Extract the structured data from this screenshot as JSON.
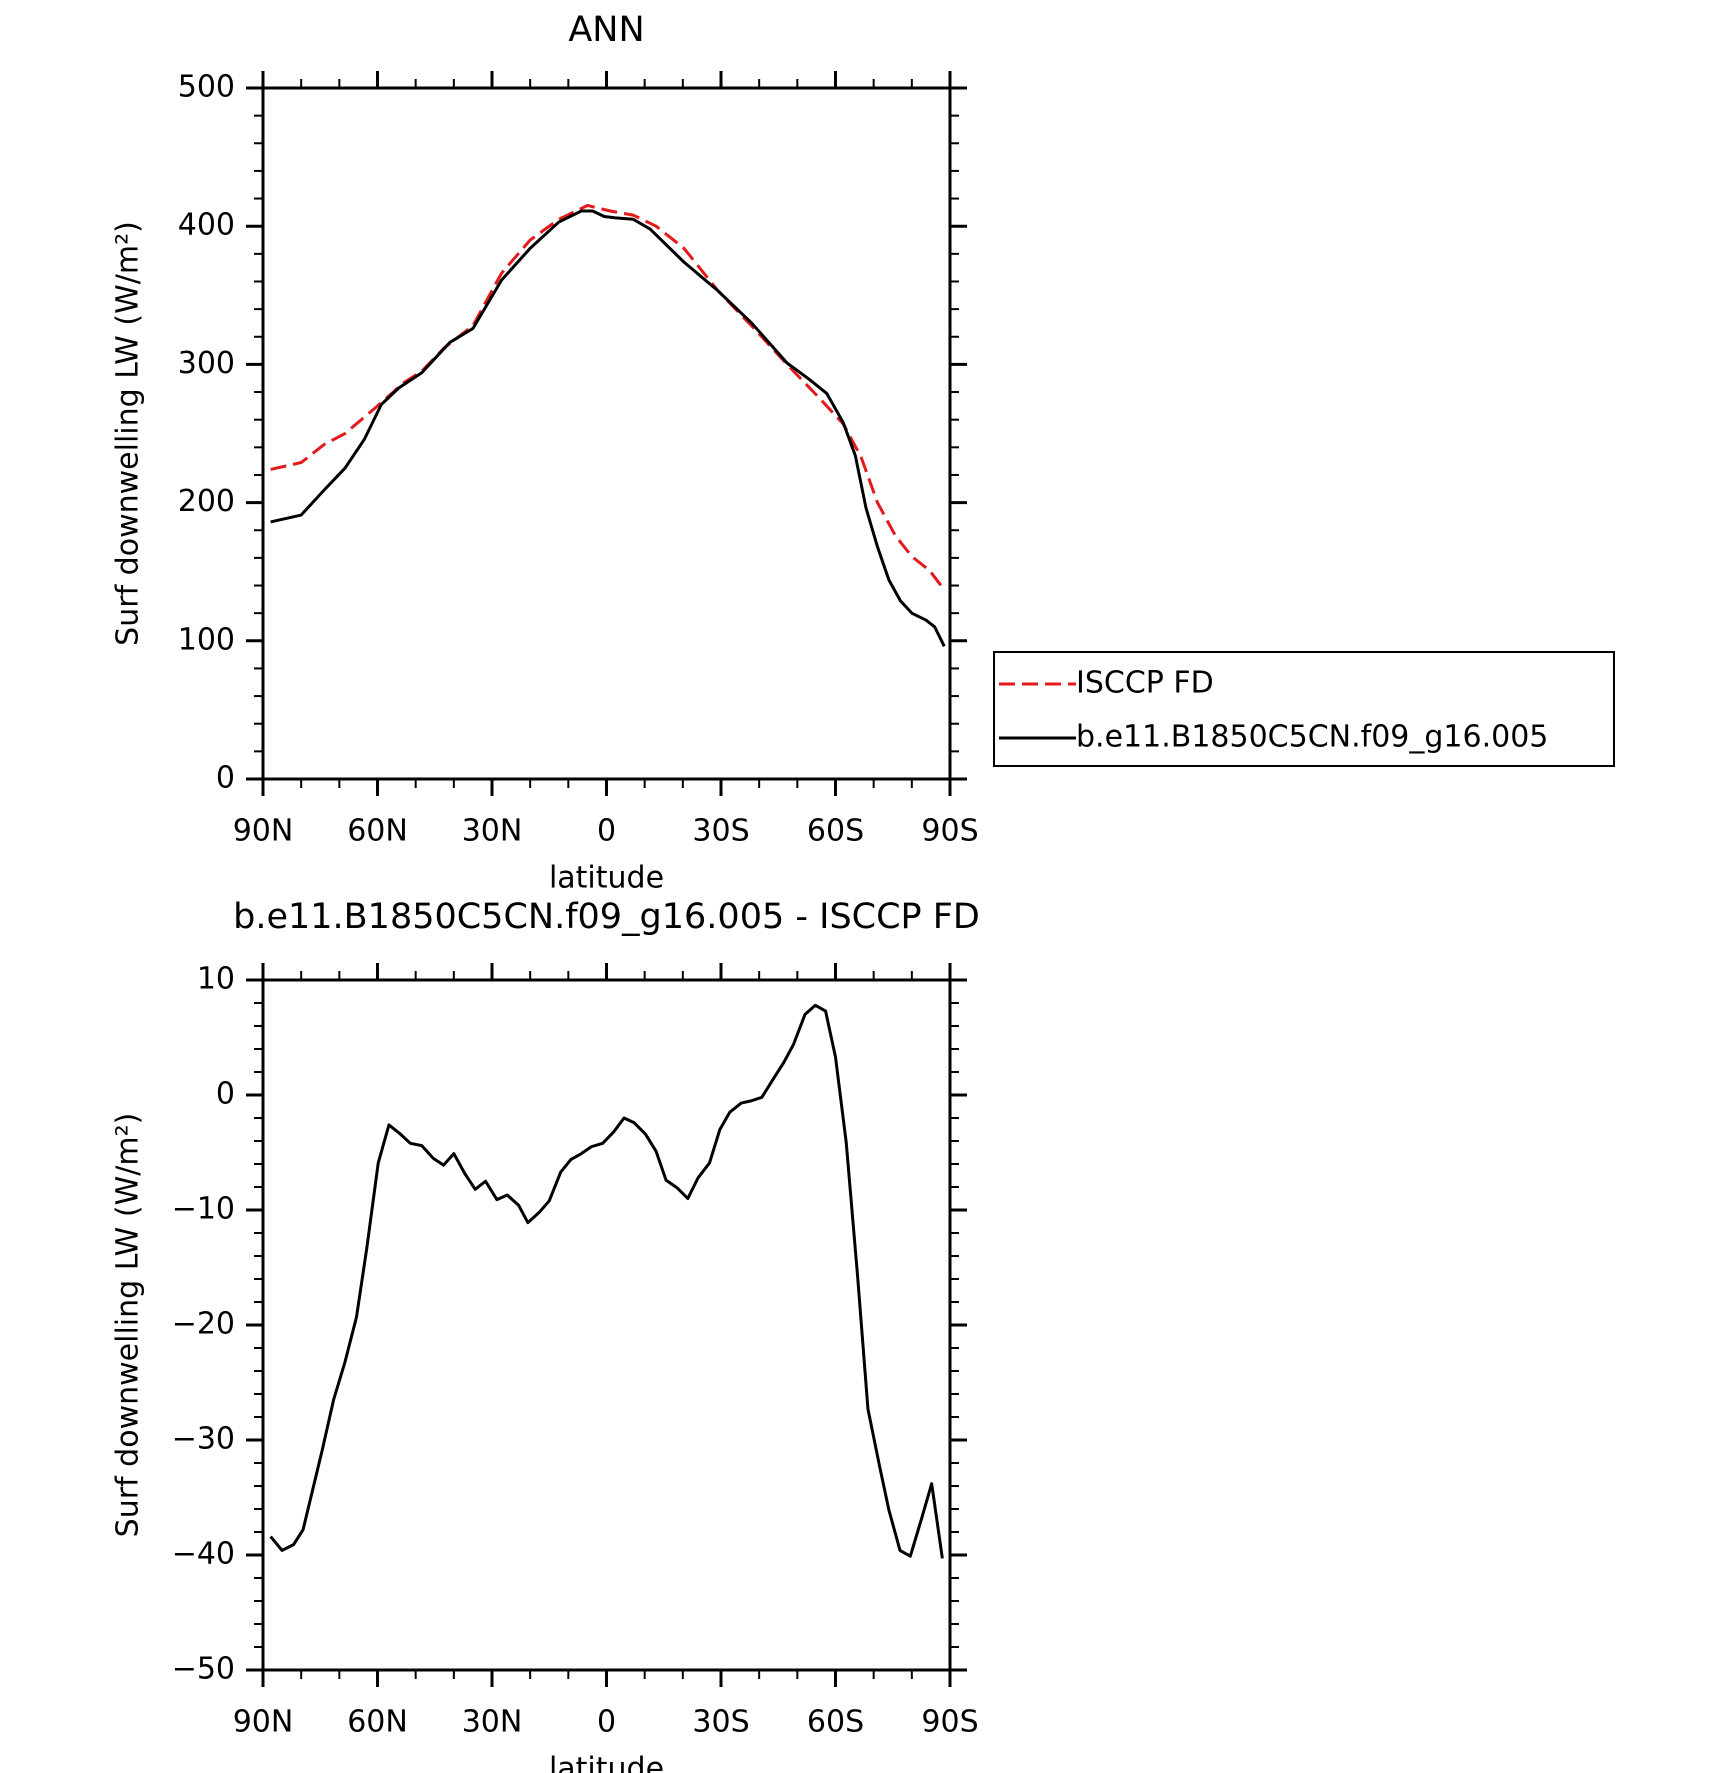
{
  "chart_data": [
    {
      "type": "line",
      "title": "ANN",
      "xlabel": "latitude",
      "ylabel": "Surf downwelling LW (W/m²)",
      "xlim": [
        90,
        -90
      ],
      "xticks": [
        {
          "value": 90,
          "label": "90N"
        },
        {
          "value": 60,
          "label": "60N"
        },
        {
          "value": 30,
          "label": "30N"
        },
        0,
        {
          "value": -30,
          "label": "30S"
        },
        {
          "value": -60,
          "label": "60S"
        },
        {
          "value": -90,
          "label": "90S"
        }
      ],
      "ylim": [
        0,
        500
      ],
      "yticks": [
        0,
        100,
        200,
        300,
        400,
        500
      ],
      "legend": "outside right",
      "series": [
        {
          "name": "ISCCP FD",
          "color": "#e31a1c",
          "linestyle": "dashed",
          "x": [
            88,
            80,
            74,
            68.5,
            60.4,
            53,
            48.4,
            42.5,
            35,
            27.5,
            20,
            12.5,
            5,
            -1,
            -7,
            -13,
            -20.3,
            -29.3,
            -38,
            -47.3,
            -56,
            -62,
            -66.7,
            -71,
            -75.7,
            -80,
            -84.6,
            -88.5
          ],
          "values": [
            224,
            229,
            242,
            250,
            269,
            287,
            295,
            312,
            328,
            366,
            390,
            405,
            415,
            411,
            408,
            400,
            384,
            353,
            328,
            300,
            275,
            257,
            233,
            200,
            176,
            161,
            151,
            137
          ]
        },
        {
          "name": "b.e11.B1850C5CN.f09_g16.005",
          "color": "#000000",
          "linestyle": "solid",
          "x": [
            88,
            80,
            74,
            68.5,
            63.4,
            59,
            54.4,
            48.4,
            41,
            35,
            27.5,
            20,
            12.5,
            6.6,
            3.6,
            0.6,
            -2.4,
            -7,
            -11.4,
            -20.3,
            -29.3,
            -38,
            -47.3,
            -53.2,
            -57.7,
            -62,
            -65.2,
            -68,
            -71,
            -74,
            -77,
            -80,
            -83.7,
            -86,
            -88.5
          ],
          "values": [
            186,
            191,
            209,
            225,
            246,
            271,
            283,
            294,
            316,
            326,
            361,
            384,
            403,
            411,
            411,
            407,
            406,
            405,
            398,
            374,
            353,
            330,
            301,
            289,
            279,
            258,
            234,
            196,
            168,
            144,
            129,
            120,
            115,
            110,
            96
          ]
        }
      ]
    },
    {
      "type": "line",
      "title": "b.e11.B1850C5CN.f09_g16.005 - ISCCP FD",
      "xlabel": "latitude",
      "ylabel": "Surf downwelling LW (W/m²)",
      "xlim": [
        90,
        -90
      ],
      "xticks": [
        {
          "value": 90,
          "label": "90N"
        },
        {
          "value": 60,
          "label": "60N"
        },
        {
          "value": 30,
          "label": "30N"
        },
        0,
        {
          "value": -30,
          "label": "30S"
        },
        {
          "value": -60,
          "label": "60S"
        },
        {
          "value": -90,
          "label": "90S"
        }
      ],
      "ylim": [
        -50,
        10
      ],
      "yticks": [
        {
          "value": -50,
          "label": "−50"
        },
        {
          "value": -40,
          "label": "−40"
        },
        {
          "value": -30,
          "label": "−30"
        },
        {
          "value": -20,
          "label": "−20"
        },
        {
          "value": -10,
          "label": "−10"
        },
        0,
        10
      ],
      "series": [
        {
          "color": "#000000",
          "linestyle": "solid",
          "x": [
            88,
            85,
            82,
            79.5,
            74.5,
            71.5,
            68.5,
            65.5,
            62.8,
            59.8,
            57,
            54,
            51.4,
            48.4,
            45.4,
            42.7,
            40,
            37,
            34.4,
            31.7,
            28.7,
            26,
            23,
            20.6,
            17.6,
            15,
            12,
            9.3,
            6.6,
            4,
            1,
            -1.9,
            -4.6,
            -7.2,
            -10.2,
            -13,
            -15.6,
            -18.6,
            -21.3,
            -24,
            -27,
            -29.7,
            -32.3,
            -35.3,
            -38,
            -40.7,
            -43.7,
            -46.4,
            -49,
            -52,
            -54.7,
            -57.4,
            -60,
            -62.8,
            -65.8,
            -68.5,
            -71.5,
            -74,
            -76.9,
            -79.6,
            -82.5,
            -85.2,
            -88
          ],
          "values": [
            -38.4,
            -39.6,
            -39.1,
            -37.8,
            -30.9,
            -26.5,
            -23.2,
            -19.3,
            -13.3,
            -5.9,
            -2.6,
            -3.4,
            -4.2,
            -4.4,
            -5.5,
            -6.1,
            -5.1,
            -6.9,
            -8.2,
            -7.5,
            -9.1,
            -8.7,
            -9.6,
            -11.1,
            -10.2,
            -9.2,
            -6.7,
            -5.6,
            -5.1,
            -4.5,
            -4.2,
            -3.2,
            -2.0,
            -2.4,
            -3.4,
            -4.9,
            -7.4,
            -8.1,
            -9.0,
            -7.2,
            -5.9,
            -3.0,
            -1.5,
            -0.7,
            -0.5,
            -0.2,
            1.4,
            2.8,
            4.4,
            7.0,
            7.8,
            7.3,
            3.3,
            -4.1,
            -15.8,
            -27.3,
            -32.2,
            -36.1,
            -39.6,
            -40.1,
            -36.9,
            -33.8,
            -40.3
          ]
        }
      ]
    }
  ]
}
